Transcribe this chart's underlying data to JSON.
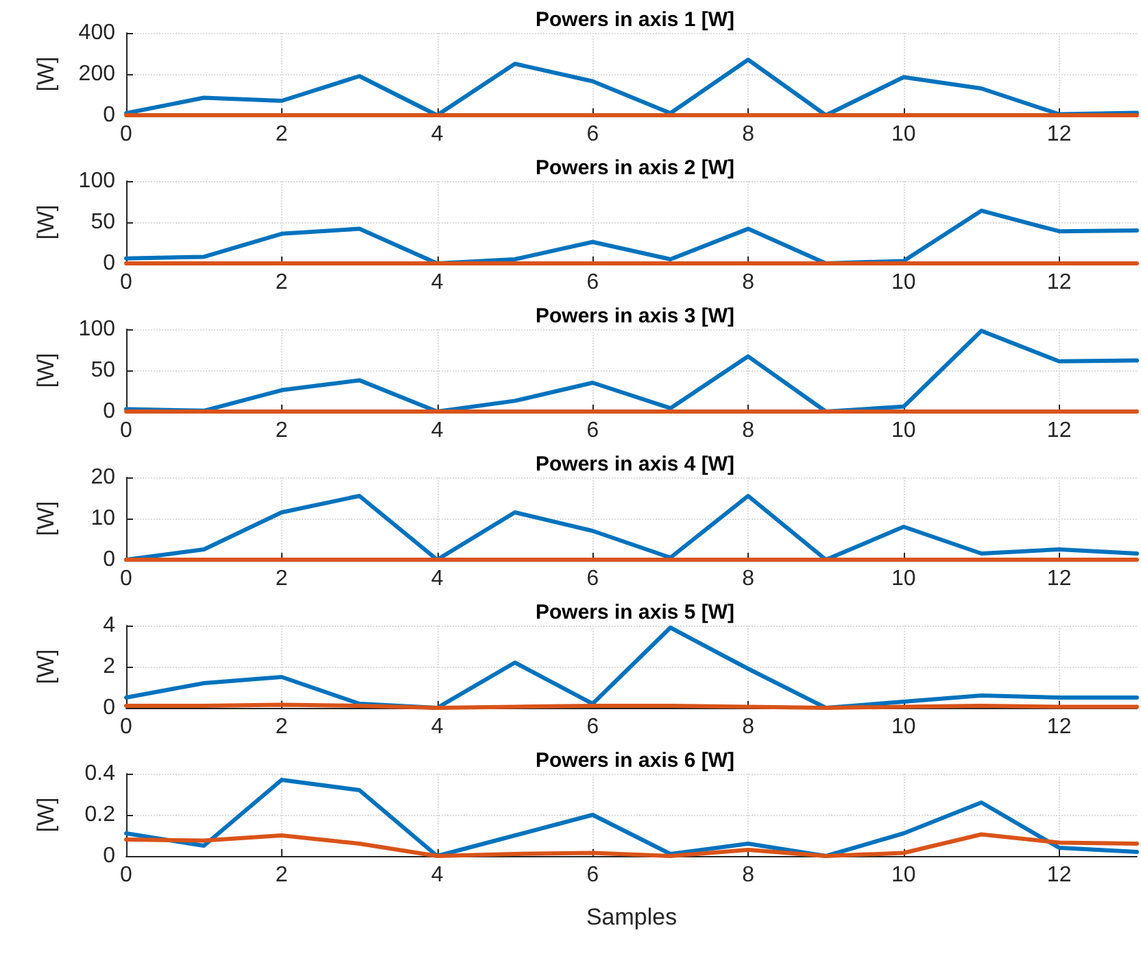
{
  "chart_data": [
    {
      "type": "line",
      "title": "Powers in axis 1 [W]",
      "ylabel": "[W]",
      "x": [
        0,
        1,
        2,
        3,
        4,
        5,
        6,
        7,
        8,
        9,
        10,
        11,
        12,
        13
      ],
      "xlim": [
        0,
        13
      ],
      "xticks": [
        0,
        2,
        4,
        6,
        8,
        10,
        12
      ],
      "ylim": [
        0,
        400
      ],
      "yticks": [
        0,
        200,
        400
      ],
      "grid": true,
      "line_style": "solid",
      "series": [
        {
          "color": "#0072bd",
          "values": [
            10,
            85,
            70,
            190,
            0,
            250,
            165,
            10,
            270,
            0,
            185,
            130,
            5,
            12
          ]
        },
        {
          "color": "#d95319",
          "values": [
            0,
            0,
            0,
            0,
            0,
            0,
            0,
            0,
            0,
            0,
            0,
            0,
            0,
            0
          ]
        }
      ]
    },
    {
      "type": "line",
      "title": "Powers in axis 2 [W]",
      "ylabel": "[W]",
      "x": [
        0,
        1,
        2,
        3,
        4,
        5,
        6,
        7,
        8,
        9,
        10,
        11,
        12,
        13
      ],
      "xlim": [
        0,
        13
      ],
      "xticks": [
        0,
        2,
        4,
        6,
        8,
        10,
        12
      ],
      "ylim": [
        0,
        100
      ],
      "yticks": [
        0,
        50,
        100
      ],
      "grid": true,
      "line_style": "solid",
      "series": [
        {
          "color": "#0072bd",
          "values": [
            6,
            8,
            36,
            42,
            0,
            5,
            26,
            5,
            42,
            0,
            3,
            64,
            39,
            40
          ]
        },
        {
          "color": "#d95319",
          "values": [
            0,
            0,
            0,
            0,
            0,
            0,
            0,
            0,
            0,
            0,
            0,
            0,
            0,
            0
          ]
        }
      ]
    },
    {
      "type": "line",
      "title": "Powers in axis 3 [W]",
      "ylabel": "[W]",
      "x": [
        0,
        1,
        2,
        3,
        4,
        5,
        6,
        7,
        8,
        9,
        10,
        11,
        12,
        13
      ],
      "xlim": [
        0,
        13
      ],
      "xticks": [
        0,
        2,
        4,
        6,
        8,
        10,
        12
      ],
      "ylim": [
        0,
        100
      ],
      "yticks": [
        0,
        50,
        100
      ],
      "grid": true,
      "line_style": "solid",
      "series": [
        {
          "color": "#0072bd",
          "values": [
            3,
            1,
            26,
            38,
            0,
            13,
            35,
            4,
            67,
            0,
            6,
            98,
            61,
            62
          ]
        },
        {
          "color": "#d95319",
          "values": [
            0,
            0,
            0,
            0,
            0,
            0,
            0,
            0,
            0,
            0,
            0,
            0,
            0,
            0
          ]
        }
      ]
    },
    {
      "type": "line",
      "title": "Powers in axis 4 [W]",
      "ylabel": "[W]",
      "x": [
        0,
        1,
        2,
        3,
        4,
        5,
        6,
        7,
        8,
        9,
        10,
        11,
        12,
        13
      ],
      "xlim": [
        0,
        13
      ],
      "xticks": [
        0,
        2,
        4,
        6,
        8,
        10,
        12
      ],
      "ylim": [
        0,
        20
      ],
      "yticks": [
        0,
        10,
        20
      ],
      "grid": true,
      "line_style": "solid",
      "series": [
        {
          "color": "#0072bd",
          "values": [
            0,
            2.5,
            11.5,
            15.5,
            0,
            11.5,
            7,
            0.5,
            15.5,
            0,
            8,
            1.5,
            2.5,
            1.5
          ]
        },
        {
          "color": "#d95319",
          "values": [
            0,
            0,
            0,
            0,
            0,
            0,
            0,
            0,
            0,
            0,
            0,
            0,
            0,
            0
          ]
        }
      ]
    },
    {
      "type": "line",
      "title": "Powers in axis 5 [W]",
      "ylabel": "[W]",
      "x": [
        0,
        1,
        2,
        3,
        4,
        5,
        6,
        7,
        8,
        9,
        10,
        11,
        12,
        13
      ],
      "xlim": [
        0,
        13
      ],
      "xticks": [
        0,
        2,
        4,
        6,
        8,
        10,
        12
      ],
      "ylim": [
        0,
        4
      ],
      "yticks": [
        0,
        2,
        4
      ],
      "grid": true,
      "line_style": "solid",
      "series": [
        {
          "color": "#0072bd",
          "values": [
            0.5,
            1.2,
            1.5,
            0.2,
            0,
            2.2,
            0.2,
            3.9,
            1.9,
            0,
            0.3,
            0.6,
            0.5,
            0.5
          ]
        },
        {
          "color": "#d95319",
          "values": [
            0.1,
            0.1,
            0.15,
            0.1,
            0,
            0.05,
            0.1,
            0.1,
            0.05,
            0,
            0.05,
            0.1,
            0.05,
            0.05
          ]
        }
      ]
    },
    {
      "type": "line",
      "title": "Powers in axis 6 [W]",
      "ylabel": "[W]",
      "xlabel": "Samples",
      "x": [
        0,
        1,
        2,
        3,
        4,
        5,
        6,
        7,
        8,
        9,
        10,
        11,
        12,
        13
      ],
      "xlim": [
        0,
        13
      ],
      "xticks": [
        0,
        2,
        4,
        6,
        8,
        10,
        12
      ],
      "ylim": [
        0,
        0.4
      ],
      "yticks": [
        0,
        0.2,
        0.4
      ],
      "grid": true,
      "line_style": "solid",
      "series": [
        {
          "color": "#0072bd",
          "values": [
            0.11,
            0.05,
            0.37,
            0.32,
            0,
            0.1,
            0.2,
            0.01,
            0.06,
            0,
            0.11,
            0.26,
            0.04,
            0.02
          ]
        },
        {
          "color": "#d95319",
          "values": [
            0.08,
            0.075,
            0.1,
            0.06,
            0,
            0.01,
            0.015,
            0,
            0.03,
            0,
            0.015,
            0.105,
            0.065,
            0.06
          ]
        }
      ]
    }
  ]
}
